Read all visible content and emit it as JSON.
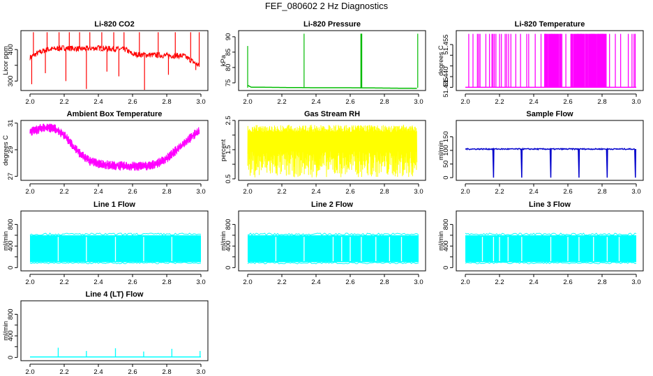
{
  "page": {
    "title": "FEF_080602  2 Hz Diagnostics"
  },
  "chart_data": [
    {
      "type": "line",
      "title": "Li-820 CO2",
      "xlabel": "",
      "ylabel": "Licor ppm",
      "color": "#ff0000",
      "xlim": [
        2.0,
        3.0
      ],
      "ylim": [
        270,
        460
      ],
      "x_ticks": [
        2.0,
        2.2,
        2.4,
        2.6,
        2.8,
        3.0
      ],
      "x_tick_labels": [
        "2.0",
        "2.2",
        "2.4",
        "2.6",
        "2.8",
        "3.0"
      ],
      "y_ticks": [
        300,
        350,
        400
      ],
      "y_tick_labels": [
        "300",
        "",
        "400"
      ],
      "series": [
        {
          "x": [
            2.0,
            2.05,
            2.1,
            2.2,
            2.3,
            2.4,
            2.5,
            2.56,
            2.6,
            2.7,
            2.8,
            2.9,
            3.0
          ],
          "y": [
            375,
            390,
            400,
            405,
            402,
            405,
            402,
            400,
            385,
            383,
            381,
            380,
            345
          ]
        }
      ],
      "spikes_up": [
        2.02,
        2.1,
        2.17,
        2.23,
        2.29,
        2.35,
        2.42,
        2.49,
        2.55,
        2.64,
        2.75,
        2.85,
        2.94,
        2.99
      ],
      "spikes_down": [
        2.01,
        2.09,
        2.21,
        2.33,
        2.45,
        2.52,
        2.67,
        2.81,
        2.97
      ]
    },
    {
      "type": "line",
      "title": "Li-820 Pressure",
      "xlabel": "",
      "ylabel": "kPa",
      "color": "#00bb00",
      "xlim": [
        2.0,
        3.0
      ],
      "ylim": [
        72.5,
        92
      ],
      "x_ticks": [
        2.0,
        2.2,
        2.4,
        2.6,
        2.8,
        3.0
      ],
      "x_tick_labels": [
        "2.0",
        "2.2",
        "2.4",
        "2.6",
        "2.8",
        "3.0"
      ],
      "y_ticks": [
        75,
        80,
        85,
        90
      ],
      "y_tick_labels": [
        "75",
        "80",
        "85",
        "90"
      ],
      "series": [
        {
          "x": [
            2.0,
            2.02,
            2.2,
            2.4,
            2.6,
            2.8,
            2.99
          ],
          "y": [
            74.2,
            73.6,
            73.5,
            73.4,
            73.4,
            73.3,
            73.2
          ]
        }
      ],
      "spikes_up": [
        2.0,
        2.33,
        2.665,
        2.995
      ]
    },
    {
      "type": "line",
      "title": "Li-820 Temperature",
      "xlabel": "",
      "ylabel": "degrees C",
      "color": "#ff00ff",
      "xlim": [
        2.0,
        3.0
      ],
      "ylim": [
        51.4335,
        51.4615
      ],
      "x_ticks": [
        2.0,
        2.2,
        2.4,
        2.6,
        2.8,
        3.0
      ],
      "x_tick_labels": [
        "2.0",
        "2.2",
        "2.4",
        "2.6",
        "2.8",
        "3.0"
      ],
      "y_ticks": [
        51.435,
        51.44,
        51.445,
        51.45,
        51.455
      ],
      "y_tick_labels": [
        "51.435",
        "51.440",
        "",
        "",
        "51.455"
      ],
      "levels": [
        51.435,
        51.46
      ]
    },
    {
      "type": "line",
      "title": "Ambient Box Temperature",
      "xlabel": "",
      "ylabel": "degrees C",
      "color": "#ff00ff",
      "xlim": [
        2.0,
        3.0
      ],
      "ylim": [
        26.7,
        31.2
      ],
      "x_ticks": [
        2.0,
        2.2,
        2.4,
        2.6,
        2.8,
        3.0
      ],
      "x_tick_labels": [
        "2.0",
        "2.2",
        "2.4",
        "2.6",
        "2.8",
        "3.0"
      ],
      "y_ticks": [
        27,
        29,
        31
      ],
      "y_tick_labels": [
        "27",
        "29",
        "31"
      ],
      "series": [
        {
          "x": [
            2.0,
            2.05,
            2.1,
            2.15,
            2.2,
            2.25,
            2.3,
            2.35,
            2.4,
            2.5,
            2.6,
            2.7,
            2.75,
            2.8,
            2.85,
            2.9,
            2.95,
            3.0
          ],
          "y": [
            30.3,
            30.55,
            30.7,
            30.55,
            30.1,
            29.3,
            28.6,
            28.15,
            27.95,
            27.8,
            27.75,
            27.8,
            28.0,
            28.35,
            28.9,
            29.5,
            30.0,
            30.55
          ]
        }
      ],
      "noise": 0.35
    },
    {
      "type": "line",
      "title": "Gas Stream RH",
      "xlabel": "",
      "ylabel": "percent",
      "color": "#ffff00",
      "xlim": [
        2.0,
        3.0
      ],
      "ylim": [
        0.45,
        2.5
      ],
      "x_ticks": [
        2.0,
        2.2,
        2.4,
        2.6,
        2.8,
        3.0
      ],
      "x_tick_labels": [
        "2.0",
        "2.2",
        "2.4",
        "2.6",
        "2.8",
        "3.0"
      ],
      "y_ticks": [
        0.5,
        1.0,
        1.5,
        2.0,
        2.5
      ],
      "y_tick_labels": [
        "0.5",
        "",
        "1.5",
        "",
        "2.5"
      ],
      "range": [
        0.55,
        2.35
      ]
    },
    {
      "type": "line",
      "title": "Sample Flow",
      "xlabel": "",
      "ylabel": "ml/min",
      "color": "#0000cc",
      "xlim": [
        2.0,
        3.0
      ],
      "ylim": [
        -10,
        210
      ],
      "x_ticks": [
        2.0,
        2.2,
        2.4,
        2.6,
        2.8,
        3.0
      ],
      "x_tick_labels": [
        "2.0",
        "2.2",
        "2.4",
        "2.6",
        "2.8",
        "3.0"
      ],
      "y_ticks": [
        0,
        50,
        100,
        150
      ],
      "y_tick_labels": [
        "0",
        "50",
        "100",
        "150"
      ],
      "baseline": 105,
      "dips": [
        2.165,
        2.33,
        2.5,
        2.665,
        2.83,
        2.995
      ]
    },
    {
      "type": "area",
      "title": "Line 1 Flow",
      "xlabel": "",
      "ylabel": "ml/min",
      "color": "#00ffff",
      "xlim": [
        2.0,
        3.0
      ],
      "ylim": [
        -60,
        1050
      ],
      "x_ticks": [
        2.0,
        2.2,
        2.4,
        2.6,
        2.8,
        3.0
      ],
      "x_tick_labels": [
        "2.0",
        "2.2",
        "2.4",
        "2.6",
        "2.8",
        "3.0"
      ],
      "y_ticks": [
        0,
        200,
        400,
        600,
        800
      ],
      "y_tick_labels": [
        "0",
        "",
        "400",
        "",
        "800"
      ],
      "band": [
        100,
        600
      ],
      "gaps": [
        2.165,
        2.33,
        2.5,
        2.665,
        2.83
      ]
    },
    {
      "type": "area",
      "title": "Line 2 Flow",
      "xlabel": "",
      "ylabel": "ml/min",
      "color": "#00ffff",
      "xlim": [
        2.0,
        3.0
      ],
      "ylim": [
        -60,
        1050
      ],
      "x_ticks": [
        2.0,
        2.2,
        2.4,
        2.6,
        2.8,
        3.0
      ],
      "x_tick_labels": [
        "2.0",
        "2.2",
        "2.4",
        "2.6",
        "2.8",
        "3.0"
      ],
      "y_ticks": [
        0,
        200,
        400,
        600,
        800
      ],
      "y_tick_labels": [
        "0",
        "",
        "400",
        "",
        "800"
      ],
      "band": [
        100,
        600
      ],
      "gaps": [
        2.165,
        2.33,
        2.5,
        2.55,
        2.6,
        2.665,
        2.75,
        2.83,
        2.9
      ]
    },
    {
      "type": "area",
      "title": "Line 3 Flow",
      "xlabel": "",
      "ylabel": "ml/min",
      "color": "#00ffff",
      "xlim": [
        2.0,
        3.0
      ],
      "ylim": [
        -60,
        1050
      ],
      "x_ticks": [
        2.0,
        2.2,
        2.4,
        2.6,
        2.8,
        3.0
      ],
      "x_tick_labels": [
        "2.0",
        "2.2",
        "2.4",
        "2.6",
        "2.8",
        "3.0"
      ],
      "y_ticks": [
        0,
        200,
        400,
        600,
        800
      ],
      "y_tick_labels": [
        "0",
        "",
        "400",
        "",
        "800"
      ],
      "band": [
        100,
        600
      ],
      "gaps": [
        2.1,
        2.165,
        2.2,
        2.25,
        2.33,
        2.5,
        2.6,
        2.665,
        2.75,
        2.83,
        2.9
      ]
    },
    {
      "type": "line",
      "title": "Line 4 (LT) Flow",
      "xlabel": "",
      "ylabel": "ml/min",
      "color": "#00ffff",
      "xlim": [
        2.0,
        3.0
      ],
      "ylim": [
        -60,
        1050
      ],
      "x_ticks": [
        2.0,
        2.2,
        2.4,
        2.6,
        2.8,
        3.0
      ],
      "x_tick_labels": [
        "2.0",
        "2.2",
        "2.4",
        "2.6",
        "2.8",
        "3.0"
      ],
      "y_ticks": [
        0,
        200,
        400,
        600,
        800
      ],
      "y_tick_labels": [
        "0",
        "",
        "400",
        "",
        "800"
      ],
      "baseline": 10,
      "spikes": [
        [
          2.165,
          180
        ],
        [
          2.33,
          120
        ],
        [
          2.5,
          170
        ],
        [
          2.665,
          110
        ],
        [
          2.83,
          160
        ],
        [
          2.995,
          120
        ]
      ]
    }
  ]
}
